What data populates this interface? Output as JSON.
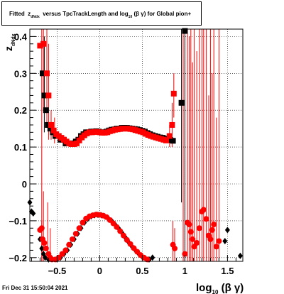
{
  "title": {
    "prefix": "Fitted",
    "z": "z",
    "z_sub": "dNdx",
    "middle": "versus TpcTrackLength and log",
    "log_sub": "10",
    "suffix": "(β γ) for Global pion+"
  },
  "timestamp": "Fri Dec 31 15:50:04 2021",
  "chart_data": {
    "type": "scatter",
    "xlabel": "log10 (β γ)",
    "xlabel_main": "log",
    "xlabel_sub": "10",
    "xlabel_tail": " (β γ)",
    "ylabel": "z_dNdx",
    "ylabel_main": "z",
    "ylabel_sub": "dNdx",
    "xlim": [
      -0.82,
      1.68
    ],
    "ylim": [
      -0.21,
      0.42
    ],
    "grid": true,
    "x_ticks": [
      -0.5,
      0,
      0.5,
      1,
      1.5
    ],
    "x_tick_labels": [
      "−0.5",
      "0",
      "0.5",
      "1",
      "1.5"
    ],
    "y_ticks": [
      -0.2,
      -0.1,
      0,
      0.1,
      0.2,
      0.3,
      0.4
    ],
    "y_tick_labels": [
      "−0.2",
      "−0.1",
      "0",
      "0.1",
      "0.2",
      "0.3",
      "0.4"
    ],
    "series": [
      {
        "color": "#000000",
        "marker": "square",
        "points": [
          [
            -0.67,
            0.3
          ],
          [
            -0.65,
            0.24
          ],
          [
            -0.63,
            0.2
          ],
          [
            -0.61,
            0.16
          ],
          [
            -0.58,
            0.15
          ],
          [
            -0.55,
            0.14
          ],
          [
            -0.52,
            0.13
          ],
          [
            -0.49,
            0.13
          ],
          [
            -0.46,
            0.12
          ],
          [
            -0.43,
            0.12
          ],
          [
            -0.4,
            0.11
          ],
          [
            -0.37,
            0.11
          ],
          [
            -0.34,
            0.11
          ],
          [
            -0.31,
            0.11
          ],
          [
            -0.28,
            0.115
          ],
          [
            -0.25,
            0.12
          ],
          [
            -0.22,
            0.13
          ],
          [
            -0.19,
            0.135
          ],
          [
            -0.16,
            0.14
          ],
          [
            -0.13,
            0.14
          ],
          [
            -0.1,
            0.142
          ],
          [
            -0.07,
            0.142
          ],
          [
            -0.04,
            0.143
          ],
          [
            -0.01,
            0.142
          ],
          [
            0.02,
            0.14
          ],
          [
            0.05,
            0.14
          ],
          [
            0.08,
            0.142
          ],
          [
            0.11,
            0.145
          ],
          [
            0.14,
            0.147
          ],
          [
            0.17,
            0.148
          ],
          [
            0.2,
            0.15
          ],
          [
            0.23,
            0.15
          ],
          [
            0.26,
            0.152
          ],
          [
            0.29,
            0.152
          ],
          [
            0.32,
            0.152
          ],
          [
            0.35,
            0.151
          ],
          [
            0.38,
            0.15
          ],
          [
            0.41,
            0.149
          ],
          [
            0.44,
            0.148
          ],
          [
            0.47,
            0.146
          ],
          [
            0.5,
            0.144
          ],
          [
            0.53,
            0.142
          ],
          [
            0.56,
            0.138
          ],
          [
            0.59,
            0.135
          ],
          [
            0.62,
            0.132
          ],
          [
            0.65,
            0.13
          ],
          [
            0.68,
            0.128
          ],
          [
            0.71,
            0.126
          ],
          [
            0.74,
            0.125
          ],
          [
            0.77,
            0.123
          ],
          [
            0.8,
            0.121
          ],
          [
            0.83,
            0.119
          ],
          [
            0.86,
            0.117
          ],
          [
            0.96,
            0.22
          ],
          [
            1.0,
            0.415
          ]
        ]
      },
      {
        "color": "#ff0000",
        "marker": "square",
        "points": [
          [
            -0.7,
            0.375
          ],
          [
            -0.66,
            0.38
          ],
          [
            -0.62,
            0.3
          ],
          [
            -0.6,
            0.24
          ],
          [
            -0.57,
            0.16
          ],
          [
            -0.54,
            0.145
          ],
          [
            -0.51,
            0.135
          ],
          [
            -0.48,
            0.13
          ],
          [
            -0.45,
            0.125
          ],
          [
            -0.42,
            0.12
          ],
          [
            -0.39,
            0.115
          ],
          [
            -0.36,
            0.11
          ],
          [
            -0.33,
            0.108
          ],
          [
            -0.3,
            0.108
          ],
          [
            -0.27,
            0.11
          ],
          [
            -0.24,
            0.118
          ],
          [
            -0.21,
            0.126
          ],
          [
            -0.18,
            0.132
          ],
          [
            -0.15,
            0.137
          ],
          [
            -0.12,
            0.14
          ],
          [
            -0.09,
            0.14
          ],
          [
            -0.06,
            0.141
          ],
          [
            -0.03,
            0.141
          ],
          [
            0.0,
            0.14
          ],
          [
            0.03,
            0.139
          ],
          [
            0.06,
            0.139
          ],
          [
            0.09,
            0.14
          ],
          [
            0.12,
            0.143
          ],
          [
            0.15,
            0.145
          ],
          [
            0.18,
            0.147
          ],
          [
            0.21,
            0.148
          ],
          [
            0.24,
            0.149
          ],
          [
            0.27,
            0.15
          ],
          [
            0.3,
            0.15
          ],
          [
            0.33,
            0.15
          ],
          [
            0.36,
            0.149
          ],
          [
            0.39,
            0.148
          ],
          [
            0.42,
            0.146
          ],
          [
            0.45,
            0.144
          ],
          [
            0.48,
            0.142
          ],
          [
            0.51,
            0.14
          ],
          [
            0.54,
            0.136
          ],
          [
            0.57,
            0.133
          ],
          [
            0.6,
            0.13
          ],
          [
            0.63,
            0.128
          ],
          [
            0.66,
            0.126
          ],
          [
            0.69,
            0.124
          ],
          [
            0.72,
            0.122
          ],
          [
            0.75,
            0.12
          ],
          [
            0.78,
            0.118
          ],
          [
            0.82,
            0.13
          ],
          [
            0.85,
            0.16
          ],
          [
            0.87,
            0.245
          ]
        ]
      },
      {
        "color": "#000000",
        "marker": "diamond",
        "points": [
          [
            -0.82,
            -0.05
          ],
          [
            -0.8,
            -0.075
          ],
          [
            -0.78,
            -0.08
          ],
          [
            -0.7,
            -0.15
          ],
          [
            -0.68,
            -0.175
          ],
          [
            -0.66,
            -0.19
          ],
          [
            -0.64,
            -0.2
          ],
          [
            -0.6,
            -0.205
          ],
          [
            -0.5,
            -0.205
          ],
          [
            -0.46,
            -0.2
          ],
          [
            -0.42,
            -0.19
          ],
          [
            -0.38,
            -0.18
          ],
          [
            -0.34,
            -0.165
          ],
          [
            -0.3,
            -0.15
          ],
          [
            -0.26,
            -0.135
          ],
          [
            -0.22,
            -0.12
          ],
          [
            -0.18,
            -0.105
          ],
          [
            -0.14,
            -0.095
          ],
          [
            -0.1,
            -0.088
          ],
          [
            -0.06,
            -0.085
          ],
          [
            -0.02,
            -0.084
          ],
          [
            0.02,
            -0.085
          ],
          [
            0.06,
            -0.088
          ],
          [
            0.1,
            -0.093
          ],
          [
            0.14,
            -0.1
          ],
          [
            0.18,
            -0.11
          ],
          [
            0.22,
            -0.12
          ],
          [
            0.26,
            -0.132
          ],
          [
            0.3,
            -0.145
          ],
          [
            0.34,
            -0.158
          ],
          [
            0.38,
            -0.17
          ],
          [
            0.42,
            -0.18
          ],
          [
            0.46,
            -0.19
          ],
          [
            0.5,
            -0.198
          ],
          [
            0.54,
            -0.203
          ],
          [
            0.58,
            -0.205
          ],
          [
            0.62,
            -0.2
          ],
          [
            1.5,
            -0.125
          ],
          [
            1.47,
            -0.155
          ],
          [
            1.65,
            -0.195
          ]
        ]
      },
      {
        "color": "#ff0000",
        "marker": "circle",
        "points": [
          [
            -0.7,
            -0.125
          ],
          [
            -0.68,
            -0.12
          ],
          [
            -0.67,
            -0.15
          ],
          [
            -0.65,
            -0.16
          ],
          [
            -0.63,
            -0.175
          ],
          [
            -0.6,
            -0.19
          ],
          [
            -0.58,
            -0.2
          ],
          [
            -0.56,
            -0.205
          ],
          [
            -0.52,
            -0.205
          ],
          [
            -0.48,
            -0.2
          ],
          [
            -0.44,
            -0.19
          ],
          [
            -0.4,
            -0.18
          ],
          [
            -0.36,
            -0.165
          ],
          [
            -0.32,
            -0.15
          ],
          [
            -0.28,
            -0.135
          ],
          [
            -0.24,
            -0.12
          ],
          [
            -0.2,
            -0.105
          ],
          [
            -0.16,
            -0.094
          ],
          [
            -0.12,
            -0.088
          ],
          [
            -0.08,
            -0.085
          ],
          [
            -0.04,
            -0.083
          ],
          [
            0.0,
            -0.084
          ],
          [
            0.04,
            -0.086
          ],
          [
            0.08,
            -0.09
          ],
          [
            0.12,
            -0.098
          ],
          [
            0.16,
            -0.107
          ],
          [
            0.2,
            -0.117
          ],
          [
            0.24,
            -0.128
          ],
          [
            0.28,
            -0.14
          ],
          [
            0.32,
            -0.152
          ],
          [
            0.36,
            -0.163
          ],
          [
            0.4,
            -0.174
          ],
          [
            0.44,
            -0.184
          ],
          [
            0.48,
            -0.193
          ],
          [
            0.52,
            -0.2
          ],
          [
            0.56,
            -0.205
          ],
          [
            0.86,
            -0.165
          ],
          [
            0.88,
            -0.175
          ],
          [
            1.0,
            -0.19
          ],
          [
            1.03,
            -0.105
          ],
          [
            1.05,
            -0.11
          ],
          [
            1.07,
            -0.13
          ],
          [
            1.09,
            -0.15
          ],
          [
            1.11,
            -0.17
          ],
          [
            1.14,
            -0.16
          ],
          [
            1.17,
            -0.12
          ],
          [
            1.2,
            -0.075
          ],
          [
            1.22,
            -0.07
          ],
          [
            1.25,
            -0.095
          ],
          [
            1.28,
            -0.14
          ],
          [
            1.3,
            -0.15
          ],
          [
            1.32,
            -0.125
          ],
          [
            1.34,
            -0.11
          ],
          [
            1.37,
            -0.17
          ],
          [
            1.4,
            -0.155
          ]
        ]
      }
    ],
    "error_bars": [
      {
        "x": -0.68,
        "y1": 0.42,
        "y2": -0.21,
        "color": "#ff0000"
      },
      {
        "x": -0.66,
        "y1": 0.42,
        "y2": 0.2,
        "color": "#ff0000"
      },
      {
        "x": -0.62,
        "y1": 0.42,
        "y2": 0.16,
        "color": "#ff0000"
      },
      {
        "x": -0.6,
        "y1": 0.38,
        "y2": 0.12,
        "color": "#ff0000"
      },
      {
        "x": -0.57,
        "y1": 0.2,
        "y2": 0.12,
        "color": "#ff0000"
      },
      {
        "x": -0.53,
        "y1": 0.18,
        "y2": 0.11,
        "color": "#ff0000"
      },
      {
        "x": -0.65,
        "y1": 0.4,
        "y2": 0.14,
        "color": "#000000"
      },
      {
        "x": -0.68,
        "y1": -0.1,
        "y2": -0.21,
        "color": "#ff0000"
      },
      {
        "x": -0.66,
        "y1": -0.02,
        "y2": -0.21,
        "color": "#ff0000"
      },
      {
        "x": -0.61,
        "y1": -0.05,
        "y2": -0.21,
        "color": "#ff0000"
      },
      {
        "x": -0.58,
        "y1": -0.12,
        "y2": -0.21,
        "color": "#ff0000"
      },
      {
        "x": 0.82,
        "y1": 0.16,
        "y2": 0.1,
        "color": "#ff0000"
      },
      {
        "x": 0.85,
        "y1": 0.22,
        "y2": 0.1,
        "color": "#ff0000"
      },
      {
        "x": 0.87,
        "y1": 0.3,
        "y2": 0.18,
        "color": "#ff0000"
      },
      {
        "x": 0.86,
        "y1": -0.1,
        "y2": -0.21,
        "color": "#ff0000"
      },
      {
        "x": 0.88,
        "y1": -0.12,
        "y2": -0.21,
        "color": "#ff0000"
      },
      {
        "x": 0.96,
        "y1": 0.42,
        "y2": -0.05,
        "color": "#000000"
      },
      {
        "x": 0.98,
        "y1": 0.42,
        "y2": -0.21,
        "color": "#ff0000"
      },
      {
        "x": 1.0,
        "y1": 0.42,
        "y2": -0.21,
        "color": "#000000"
      },
      {
        "x": 1.03,
        "y1": 0.42,
        "y2": -0.21,
        "color": "#ff0000"
      },
      {
        "x": 1.05,
        "y1": 0.4,
        "y2": -0.21,
        "color": "#ff0000"
      },
      {
        "x": 1.07,
        "y1": 0.42,
        "y2": -0.21,
        "color": "#ff0000"
      },
      {
        "x": 1.09,
        "y1": 0.33,
        "y2": -0.21,
        "color": "#ff0000"
      },
      {
        "x": 1.11,
        "y1": 0.42,
        "y2": -0.21,
        "color": "#ff0000"
      },
      {
        "x": 1.14,
        "y1": 0.36,
        "y2": -0.21,
        "color": "#ff0000"
      },
      {
        "x": 1.17,
        "y1": 0.42,
        "y2": -0.21,
        "color": "#ff0000"
      },
      {
        "x": 1.2,
        "y1": 0.42,
        "y2": -0.21,
        "color": "#ff0000"
      },
      {
        "x": 1.22,
        "y1": 0.42,
        "y2": -0.21,
        "color": "#ff0000"
      },
      {
        "x": 1.25,
        "y1": 0.42,
        "y2": -0.21,
        "color": "#ff0000"
      },
      {
        "x": 1.28,
        "y1": 0.24,
        "y2": -0.21,
        "color": "#ff0000"
      },
      {
        "x": 1.3,
        "y1": 0.42,
        "y2": -0.21,
        "color": "#ff0000"
      },
      {
        "x": 1.32,
        "y1": 0.3,
        "y2": -0.21,
        "color": "#ff0000"
      },
      {
        "x": 1.34,
        "y1": 0.42,
        "y2": -0.21,
        "color": "#ff0000"
      },
      {
        "x": 1.37,
        "y1": 0.18,
        "y2": -0.21,
        "color": "#ff0000"
      },
      {
        "x": 1.4,
        "y1": 0.42,
        "y2": -0.21,
        "color": "#ff0000"
      }
    ]
  }
}
